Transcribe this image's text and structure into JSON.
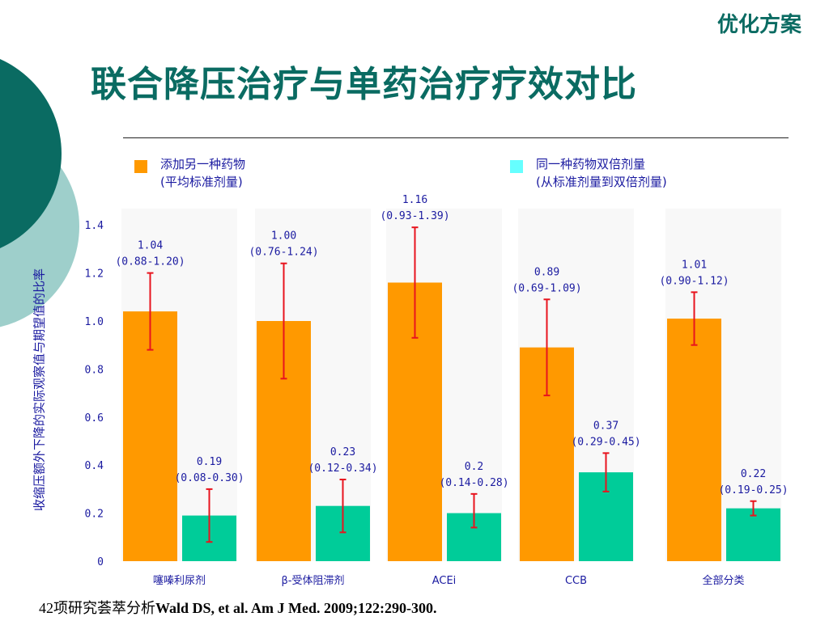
{
  "header": {
    "corner_label": "优化方案",
    "title": "联合降压治疗与单药治疗疗效对比"
  },
  "footer": {
    "prefix": "42项研究荟萃分析",
    "citation": "Wald DS, et al. Am J Med. 2009;122:290-300."
  },
  "colors": {
    "accent": "#0a6b62",
    "text_blue": "#1a1aa0",
    "add_drug": "#ff9900",
    "double_dose": "#00cc99",
    "legend_double_dose": "#66ffff",
    "error_bar": "#e8141e"
  },
  "chart_data": {
    "type": "bar",
    "title": "",
    "xlabel": "",
    "ylabel": "收缩压额外下降的实际观察值与期望值的比率",
    "ylim": [
      0,
      1.4
    ],
    "yticks": [
      "0",
      "0.2",
      "0.4",
      "0.6",
      "0.8",
      "1.0",
      "1.2",
      "1.4"
    ],
    "legend_position": "top",
    "categories": [
      "噻嗪利尿剂",
      "β-受体阻滞剂",
      "ACEi",
      "CCB",
      "全部分类"
    ],
    "series": [
      {
        "name": "添加另一种药物",
        "name_line2": "(平均标准剂量)",
        "color": "#ff9900",
        "legend_color": "#ff9900",
        "values": [
          1.04,
          1.0,
          1.16,
          0.89,
          1.01
        ],
        "ci_low": [
          0.88,
          0.76,
          0.93,
          0.69,
          0.9
        ],
        "ci_high": [
          1.2,
          1.24,
          1.39,
          1.09,
          1.12
        ],
        "value_labels": [
          "1.04",
          "1.00",
          "1.16",
          "0.89",
          "1.01"
        ],
        "ci_labels": [
          "(0.88-1.20)",
          "(0.76-1.24)",
          "(0.93-1.39)",
          "(0.69-1.09)",
          "(0.90-1.12)"
        ]
      },
      {
        "name": "同一种药物双倍剂量",
        "name_line2": "(从标准剂量到双倍剂量)",
        "color": "#00cc99",
        "legend_color": "#66ffff",
        "values": [
          0.19,
          0.23,
          0.2,
          0.37,
          0.22
        ],
        "ci_low": [
          0.08,
          0.12,
          0.14,
          0.29,
          0.19
        ],
        "ci_high": [
          0.3,
          0.34,
          0.28,
          0.45,
          0.25
        ],
        "value_labels": [
          "0.19",
          "0.23",
          "0.2",
          "0.37",
          "0.22"
        ],
        "ci_labels": [
          "(0.08-0.30)",
          "(0.12-0.34)",
          "(0.14-0.28)",
          "(0.29-0.45)",
          "(0.19-0.25)"
        ]
      }
    ]
  }
}
